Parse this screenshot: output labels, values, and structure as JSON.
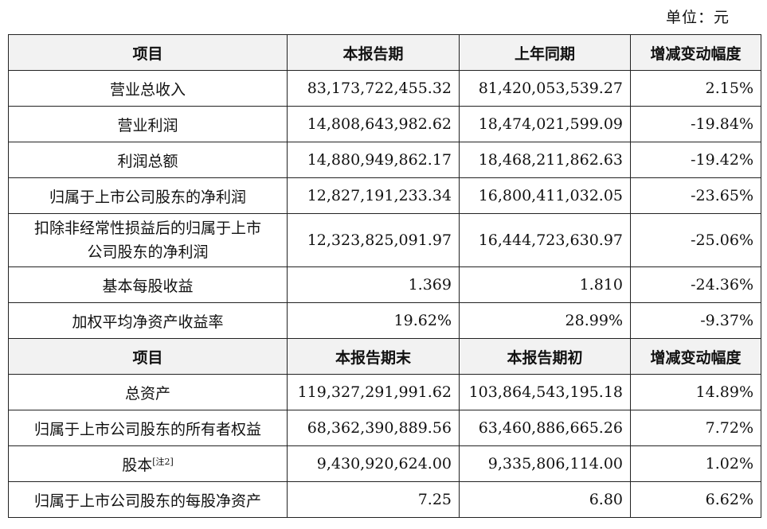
{
  "unit_label": "单位：元",
  "section1": {
    "headers": [
      "项目",
      "本报告期",
      "上年同期",
      "增减变动幅度"
    ],
    "rows": [
      {
        "item": "营业总收入",
        "current": "83,173,722,455.32",
        "previous": "81,420,053,539.27",
        "change": "2.15%"
      },
      {
        "item": "营业利润",
        "current": "14,808,643,982.62",
        "previous": "18,474,021,599.09",
        "change": "-19.84%"
      },
      {
        "item": "利润总额",
        "current": "14,880,949,862.17",
        "previous": "18,468,211,862.63",
        "change": "-19.42%"
      },
      {
        "item": "归属于上市公司股东的净利润",
        "current": "12,827,191,233.34",
        "previous": "16,800,411,032.05",
        "change": "-23.65%"
      },
      {
        "item_line1": "扣除非经常性损益后的归属于上市",
        "item_line2": "公司股东的净利润",
        "current": "12,323,825,091.97",
        "previous": "16,444,723,630.97",
        "change": "-25.06%"
      },
      {
        "item": "基本每股收益",
        "current": "1.369",
        "previous": "1.810",
        "change": "-24.36%"
      },
      {
        "item": "加权平均净资产收益率",
        "current": "19.62%",
        "previous": "28.99%",
        "change": "-9.37%"
      }
    ]
  },
  "section2": {
    "headers": [
      "项目",
      "本报告期末",
      "本报告期初",
      "增减变动幅度"
    ],
    "rows": [
      {
        "item": "总资产",
        "current": "119,327,291,991.62",
        "previous": "103,864,543,195.18",
        "change": "14.89%"
      },
      {
        "item": "归属于上市公司股东的所有者权益",
        "current": "68,362,390,889.56",
        "previous": "63,460,886,665.26",
        "change": "7.72%"
      },
      {
        "item": "股本",
        "note": "[注2]",
        "current": "9,430,920,624.00",
        "previous": "9,335,806,114.00",
        "change": "1.02%"
      },
      {
        "item": "归属于上市公司股东的每股净资产",
        "current": "7.25",
        "previous": "6.80",
        "change": "6.62%"
      }
    ]
  }
}
